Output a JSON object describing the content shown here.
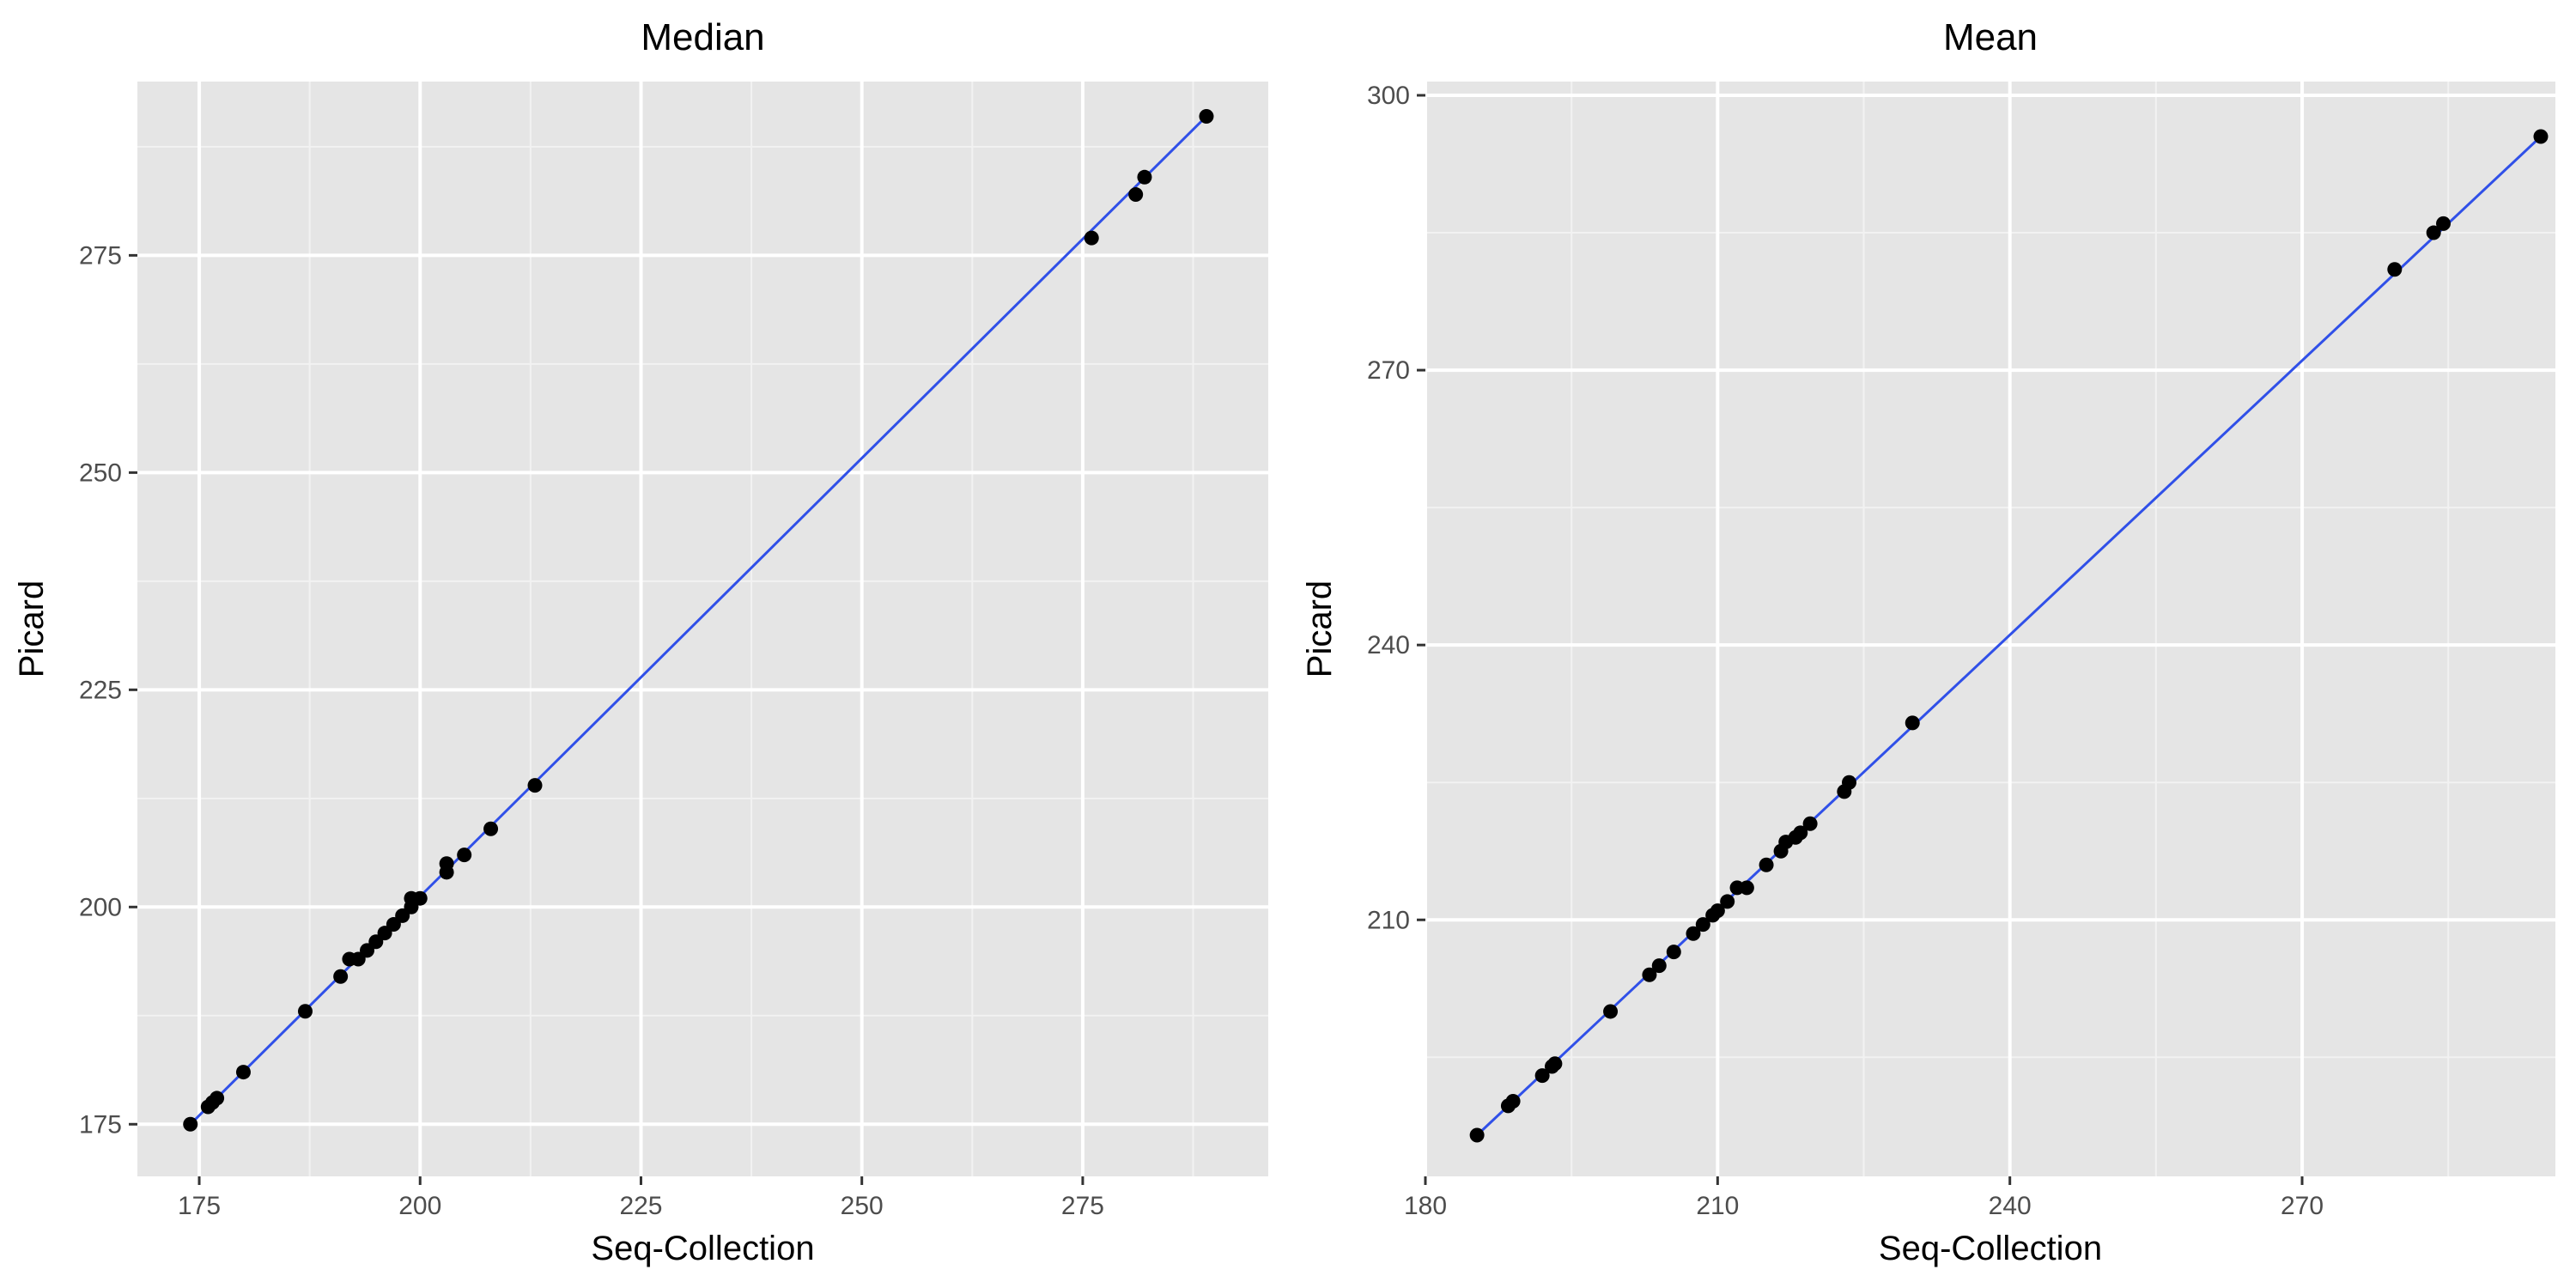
{
  "chart_data": [
    {
      "type": "scatter",
      "title": "Median",
      "xlabel": "Seq-Collection",
      "ylabel": "Picard",
      "xlim": [
        168,
        296
      ],
      "ylim": [
        169,
        295
      ],
      "x_ticks": [
        175,
        200,
        225,
        250,
        275
      ],
      "y_ticks": [
        175,
        200,
        225,
        250,
        275
      ],
      "x_tick_labels": [
        "175",
        "200",
        "225",
        "250",
        "275"
      ],
      "y_tick_labels": [
        "175",
        "200",
        "225",
        "250",
        "275"
      ],
      "grid": true,
      "fit_line": {
        "color": "#3050e8",
        "x": [
          174,
          289
        ],
        "y": [
          175,
          291
        ]
      },
      "point_color": "#000000",
      "points": [
        [
          174,
          175
        ],
        [
          176,
          177
        ],
        [
          176.5,
          177.5
        ],
        [
          177,
          178
        ],
        [
          180,
          181
        ],
        [
          187,
          188
        ],
        [
          191,
          192
        ],
        [
          192,
          194
        ],
        [
          193,
          194
        ],
        [
          194,
          195
        ],
        [
          195,
          196
        ],
        [
          196,
          197
        ],
        [
          197,
          198
        ],
        [
          198,
          199
        ],
        [
          199,
          200
        ],
        [
          199,
          201
        ],
        [
          200,
          201
        ],
        [
          203,
          204
        ],
        [
          203,
          205
        ],
        [
          205,
          206
        ],
        [
          208,
          209
        ],
        [
          213,
          214
        ],
        [
          276,
          277
        ],
        [
          281,
          282
        ],
        [
          282,
          284
        ],
        [
          289,
          291
        ]
      ]
    },
    {
      "type": "scatter",
      "title": "Mean",
      "xlabel": "Seq-Collection",
      "ylabel": "Picard",
      "xlim": [
        180,
        296
      ],
      "ylim": [
        182,
        301.5
      ],
      "x_ticks": [
        180,
        210,
        240,
        270
      ],
      "y_ticks": [
        210,
        240,
        270,
        300
      ],
      "x_tick_labels": [
        "180",
        "210",
        "240",
        "270"
      ],
      "y_tick_labels": [
        "210",
        "240",
        "270",
        "300"
      ],
      "grid": true,
      "fit_line": {
        "color": "#3050e8",
        "x": [
          185.3,
          294.5
        ],
        "y": [
          186.5,
          295.5
        ]
      },
      "point_color": "#000000",
      "points": [
        [
          185.3,
          186.5
        ],
        [
          188.5,
          189.7
        ],
        [
          189,
          190.2
        ],
        [
          192,
          193
        ],
        [
          193,
          194
        ],
        [
          193.3,
          194.3
        ],
        [
          199,
          200
        ],
        [
          203,
          204
        ],
        [
          204,
          205
        ],
        [
          205.5,
          206.5
        ],
        [
          207.5,
          208.5
        ],
        [
          208.5,
          209.5
        ],
        [
          209.5,
          210.5
        ],
        [
          210,
          211
        ],
        [
          211,
          212
        ],
        [
          212,
          213.5
        ],
        [
          213,
          213.5
        ],
        [
          215,
          216
        ],
        [
          216.5,
          217.5
        ],
        [
          217,
          218.5
        ],
        [
          218,
          219
        ],
        [
          218.5,
          219.5
        ],
        [
          219.5,
          220.5
        ],
        [
          223,
          224
        ],
        [
          223.5,
          225
        ],
        [
          230,
          231.5
        ],
        [
          279.5,
          281
        ],
        [
          283.5,
          285
        ],
        [
          284.5,
          286
        ],
        [
          294.5,
          295.5
        ]
      ]
    }
  ]
}
